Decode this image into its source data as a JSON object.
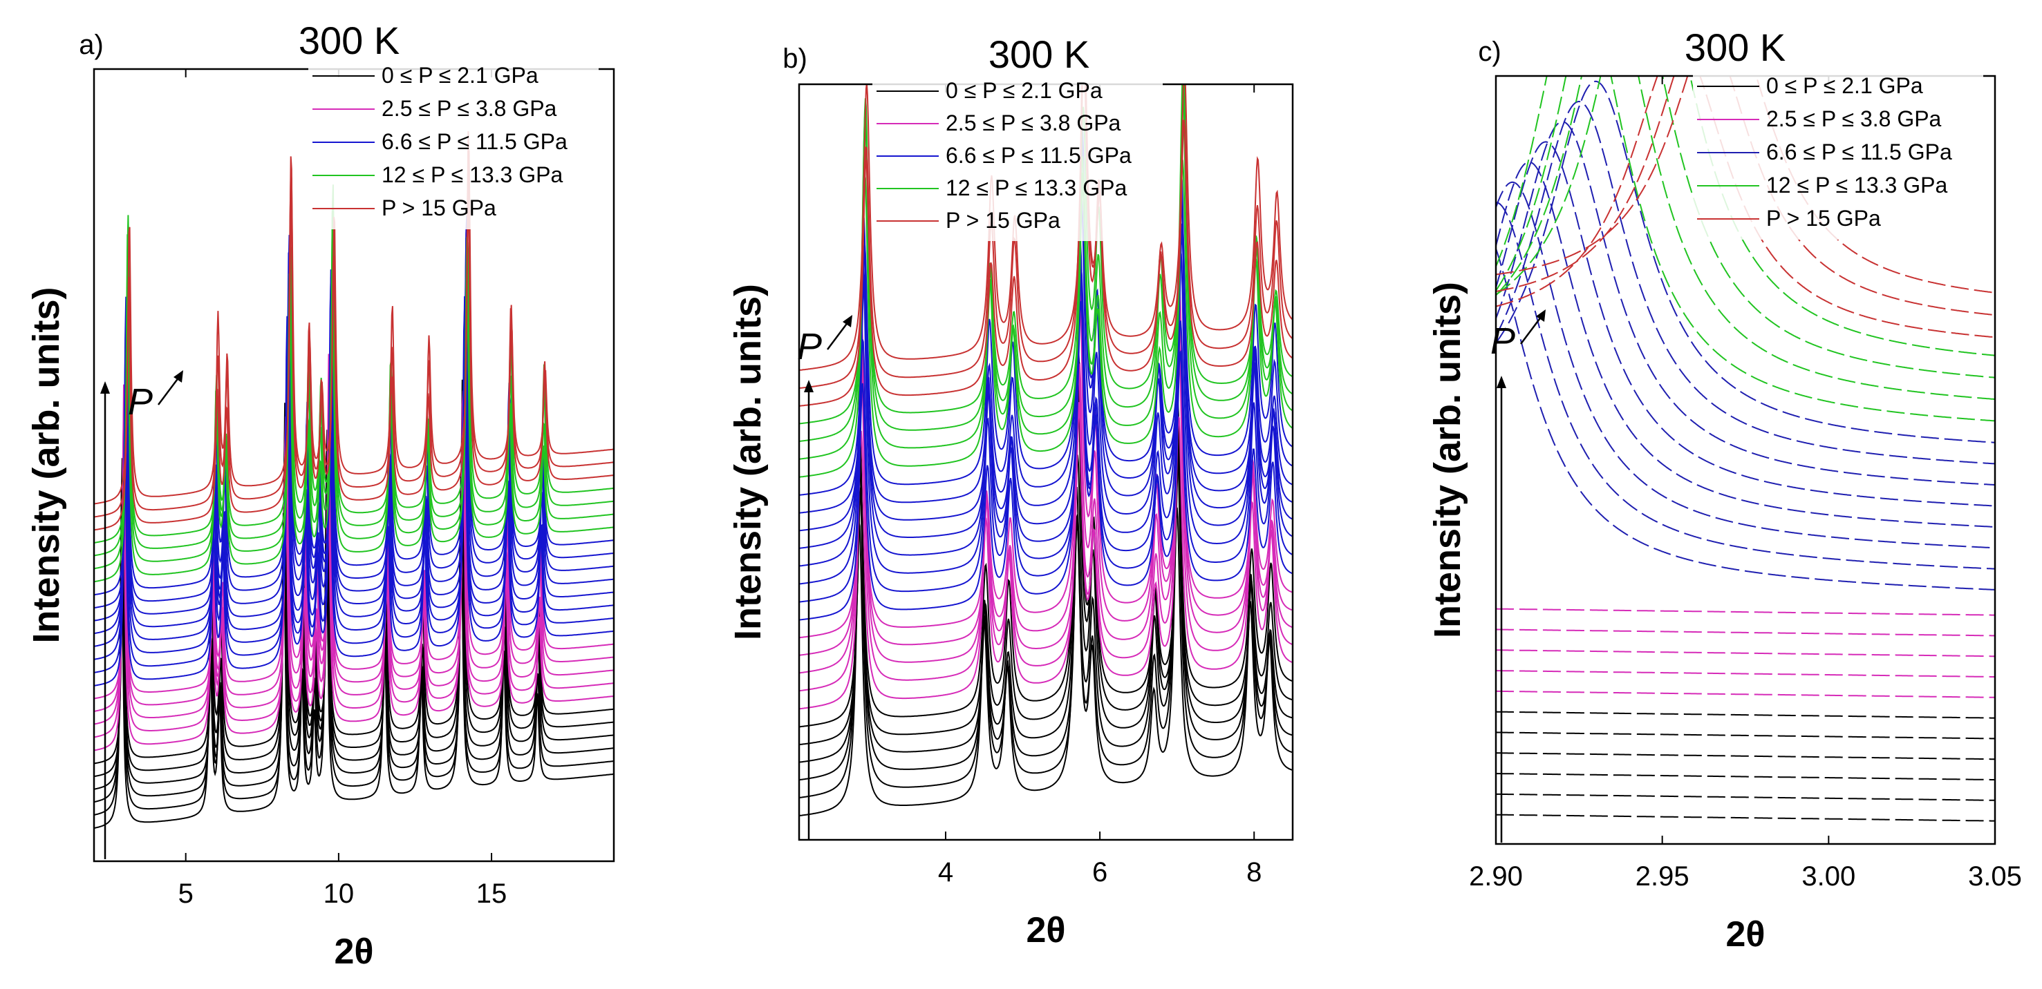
{
  "chart_data": [
    {
      "type": "line",
      "panel_label": "a)",
      "title": "300 K",
      "xlabel": "2θ",
      "ylabel": "Intensity (arb. units)",
      "xlim": [
        2,
        19
      ],
      "x_ticks": [
        5,
        10,
        15
      ],
      "x_tick_labels": [
        "5",
        "10",
        "15"
      ],
      "y_ticks": [],
      "pressure_arrow_label": "P",
      "legend_position": "top-right",
      "series": [
        {
          "label": "0 ≤ P ≤  2.1 GPa",
          "color": "#000000",
          "count": 6
        },
        {
          "label": "2.5 ≤ P ≤  3.8 GPa",
          "color": "#d62bb8",
          "count": 5
        },
        {
          "label": "6.6 ≤ P ≤  11.5 GPa",
          "color": "#1515d0",
          "count": 8
        },
        {
          "label": "12  ≤ P ≤  13.3 GPa",
          "color": "#21c421",
          "count": 4
        },
        {
          "label": "P > 15 GPa",
          "color": "#c83232",
          "count": 3
        }
      ],
      "peak_positions": [
        2.9,
        5.8,
        6.1,
        8.2,
        8.8,
        9.2,
        9.6,
        11.5,
        12.7,
        14.0,
        15.4,
        16.5
      ]
    },
    {
      "type": "line",
      "panel_label": "b)",
      "title": "300 K",
      "xlabel": "2θ",
      "ylabel": "Intensity (arb. units)",
      "xlim": [
        2.1,
        8.5
      ],
      "x_ticks": [
        4,
        6,
        8
      ],
      "x_tick_labels": [
        "4",
        "6",
        "8"
      ],
      "y_ticks": [],
      "pressure_arrow_label": "P",
      "legend_position": "top-left",
      "series": [
        {
          "label": "0 ≤ P ≤  2.1 GPa",
          "color": "#000000",
          "count": 6
        },
        {
          "label": "2.5 ≤ P ≤  3.8 GPa",
          "color": "#d62bb8",
          "count": 5
        },
        {
          "label": "6.6 ≤ P ≤  11.5 GPa",
          "color": "#1515d0",
          "count": 8
        },
        {
          "label": "12  ≤ P ≤  13.3 GPa",
          "color": "#21c421",
          "count": 4
        },
        {
          "label": "P > 15 GPa",
          "color": "#c83232",
          "count": 3
        }
      ],
      "peak_positions": [
        2.88,
        4.5,
        4.8,
        5.7,
        5.9,
        6.7,
        7.0,
        7.95,
        8.2
      ]
    },
    {
      "type": "line",
      "panel_label": "c)",
      "title": "300 K",
      "xlabel": "2θ",
      "ylabel": "Intensity (arb. units)",
      "xlim": [
        2.9,
        3.05
      ],
      "x_ticks": [
        2.9,
        2.95,
        3.0,
        3.05
      ],
      "x_tick_labels": [
        "2.90",
        "2.95",
        "3.00",
        "3.05"
      ],
      "y_ticks": [],
      "pressure_arrow_label": "P",
      "legend_position": "top-right",
      "series": [
        {
          "label": "0 ≤ P ≤  2.1 GPa",
          "color": "#000000",
          "count": 6
        },
        {
          "label": "2.5 ≤ P ≤  3.8 GPa",
          "color": "#d62bb8",
          "count": 5
        },
        {
          "label": "6.6 ≤ P ≤  11.5 GPa",
          "color": "#1f1fb0",
          "count": 8
        },
        {
          "label": "12  ≤ P ≤  13.3 GPa",
          "color": "#21c421",
          "count": 4
        },
        {
          "label": "P > 15 GPa",
          "color": "#c83232",
          "count": 3
        }
      ],
      "peak_positions_by_series": {
        "6.6 ≤ P ≤  11.5 GPa": [
          2.895,
          2.9,
          2.905,
          2.91,
          2.915,
          2.92,
          2.925,
          2.93
        ],
        "12  ≤ P ≤  13.3 GPa": [
          2.925,
          2.932,
          2.938,
          2.945
        ],
        "P > 15 GPa": [
          2.955,
          2.962,
          2.968
        ]
      }
    }
  ]
}
